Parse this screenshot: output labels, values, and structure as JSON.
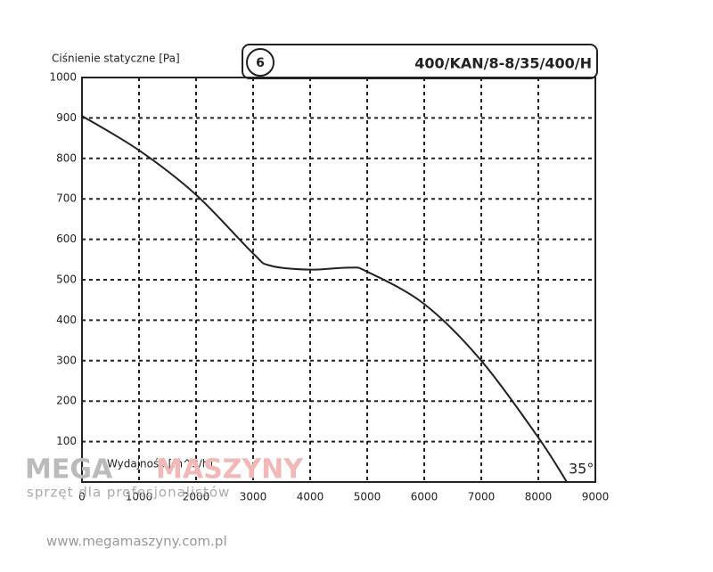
{
  "chart_data": {
    "type": "line",
    "y_label": "Ciśnienie statyczne [Pa]",
    "x_label": "Wydajność [m^3/h]",
    "badge": "6",
    "model": "400/KAN/8-8/35/400/H",
    "x": [
      0,
      1000,
      2000,
      3000,
      3300,
      4000,
      4700,
      5000,
      6000,
      7000,
      8000,
      8500
    ],
    "series": [
      {
        "name": "35°",
        "color": "#222222",
        "values": [
          905,
          820,
          710,
          565,
          535,
          525,
          530,
          520,
          440,
          300,
          110,
          0
        ]
      }
    ],
    "xlim": [
      0,
      9000
    ],
    "xticks": [
      0,
      1000,
      2000,
      3000,
      4000,
      5000,
      6000,
      7000,
      8000,
      9000
    ],
    "ylim": [
      0,
      1000
    ],
    "yticks": [
      100,
      200,
      300,
      400,
      500,
      600,
      700,
      800,
      900,
      1000
    ],
    "grid": true
  },
  "watermark": {
    "brand_left": "MEGA",
    "brand_right": "MASZYNY",
    "slogan": "sprzęt dla profesjonalistów",
    "url": "www.megamaszyny.com.pl"
  }
}
